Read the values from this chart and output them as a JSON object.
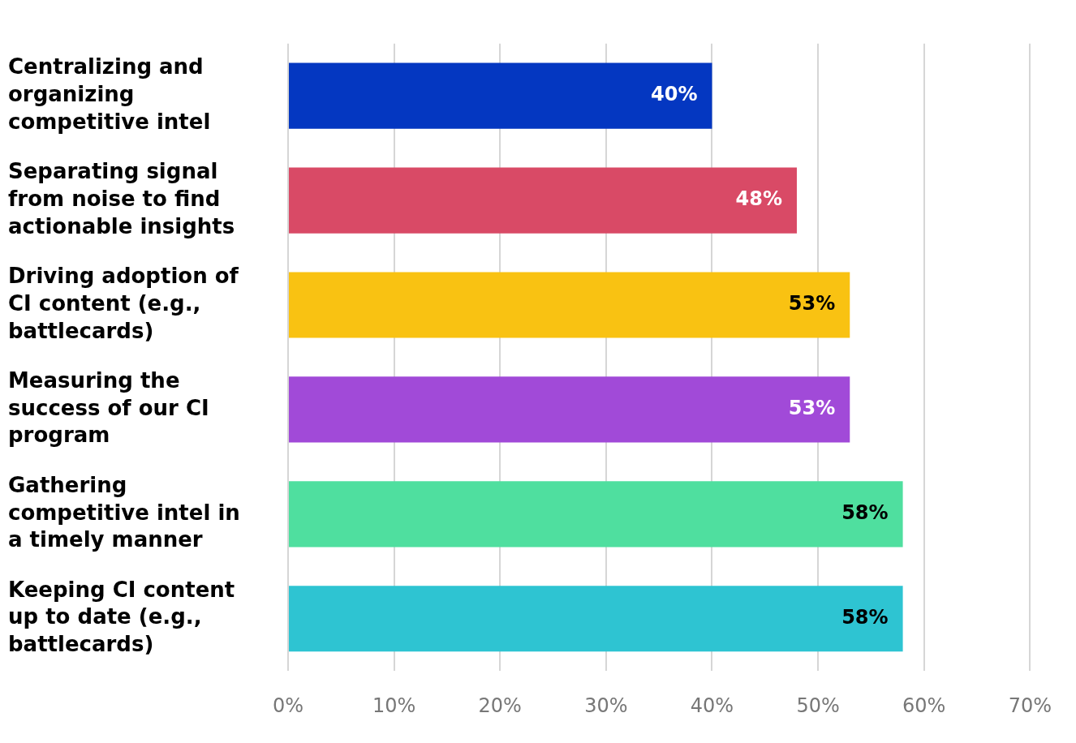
{
  "chart_data": {
    "type": "bar",
    "orientation": "horizontal",
    "categories": [
      "Centralizing and organizing competitive intel",
      "Separating signal from noise to find actionable insights",
      "Driving adoption of CI content (e.g., battlecards)",
      "Measuring the success of our CI program",
      "Gathering competitive intel in a timely manner",
      "Keeping CI content up to date (e.g., battlecards)"
    ],
    "values": [
      40,
      48,
      53,
      53,
      58,
      58
    ],
    "colors": [
      "#0437c1",
      "#d94a66",
      "#f9c212",
      "#a14ad8",
      "#4fdf9f",
      "#2ec4d2"
    ],
    "value_labels": [
      "40%",
      "48%",
      "53%",
      "53%",
      "58%",
      "58%"
    ],
    "xlim": [
      0,
      70
    ],
    "xticks": [
      {
        "value": 0,
        "label": "0%"
      },
      {
        "value": 10,
        "label": "10%"
      },
      {
        "value": 20,
        "label": "20%"
      },
      {
        "value": 30,
        "label": "30%"
      },
      {
        "value": 40,
        "label": "40%"
      },
      {
        "value": 50,
        "label": "50%"
      },
      {
        "value": 60,
        "label": "60%"
      },
      {
        "value": 70,
        "label": "70%"
      }
    ],
    "grid": "x",
    "legend": false
  }
}
